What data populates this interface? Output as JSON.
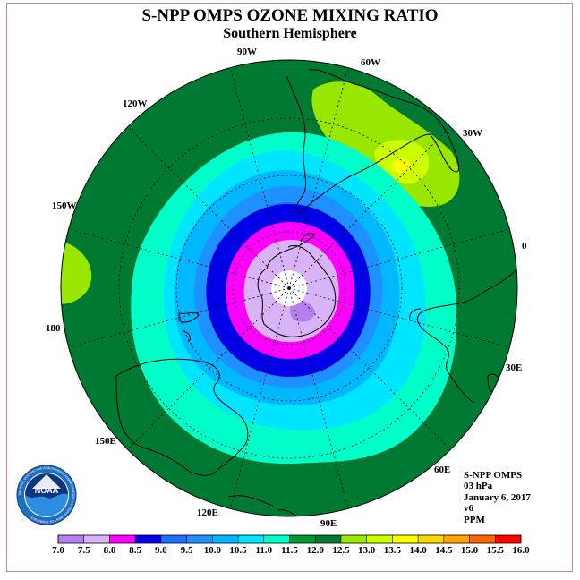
{
  "header": {
    "title": "S-NPP OMPS OZONE MIXING RATIO",
    "subtitle": "Southern Hemisphere"
  },
  "map": {
    "longitude_labels": [
      "90W",
      "60W",
      "30W",
      "0",
      "30E",
      "60E",
      "90E",
      "120E",
      "150E",
      "180",
      "150W",
      "120W"
    ],
    "colors": {
      "c7_0": "#b57fef",
      "c7_5": "#d9b3f7",
      "c8_0": "#ff00ff",
      "c8_5": "#0000e6",
      "c9_0": "#1e6fff",
      "c9_5": "#1e90ff",
      "c10_0": "#00b8ff",
      "c10_5": "#00e5ff",
      "c11_0": "#00ffc8",
      "c11_5": "#009933",
      "c12_0": "#007a33",
      "c12_5": "#99e600",
      "c13_0": "#ccff00",
      "c13_5": "#ffff00",
      "c14_0": "#ffd700",
      "c14_5": "#ffa500",
      "c15_0": "#ff6600",
      "c15_5": "#ff0000",
      "c16_0": "#8b5a3a"
    }
  },
  "logo": {
    "text": "NOAA",
    "ring_text": "NATIONAL OCEANIC AND ATMOSPHERIC ADMINISTRATION U.S. DEPARTMENT OF COMMERCE"
  },
  "info": {
    "instrument": "S-NPP OMPS",
    "pressure": "03 hPa",
    "date": "January 6, 2017",
    "version": "v6",
    "units": "PPM"
  },
  "colorbar": {
    "labels": [
      "7.0",
      "7.5",
      "8.0",
      "8.5",
      "9.0",
      "9.5",
      "10.0",
      "10.5",
      "11.0",
      "11.5",
      "12.0",
      "12.5",
      "13.0",
      "13.5",
      "14.0",
      "14.5",
      "15.0",
      "15.5",
      "16.0"
    ],
    "colors": [
      "#b57fef",
      "#d9b3f7",
      "#ff00ff",
      "#0000e6",
      "#1e6fff",
      "#1e90ff",
      "#00b8ff",
      "#00e5ff",
      "#00ffc8",
      "#009933",
      "#007a33",
      "#99e600",
      "#ccff00",
      "#ffff00",
      "#ffd700",
      "#ffa500",
      "#ff6600",
      "#ff0000"
    ]
  }
}
